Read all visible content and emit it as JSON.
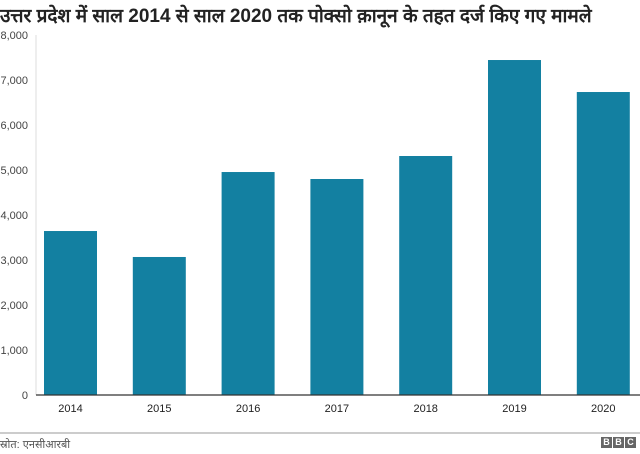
{
  "chart_data": {
    "type": "bar",
    "title": "उत्तर प्रदेश में साल 2014 से साल 2020 तक पोक्सो क़ानून के तहत दर्ज किए गए मामले",
    "categories": [
      "2014",
      "2015",
      "2016",
      "2017",
      "2018",
      "2019",
      "2020"
    ],
    "values": [
      3644,
      3067,
      4955,
      4800,
      5311,
      7444,
      6733
    ],
    "ylim": [
      0,
      8000
    ],
    "yticks": [
      "0",
      "1,000",
      "2,000",
      "3,000",
      "4,000",
      "5,000",
      "6,000",
      "7,000",
      "8,000"
    ],
    "xlabel": "",
    "ylabel": "",
    "grid": false,
    "bar_color": "#1380a1"
  },
  "source": "स्रोत: एनसीआरबी",
  "logo": [
    "B",
    "B",
    "C"
  ]
}
